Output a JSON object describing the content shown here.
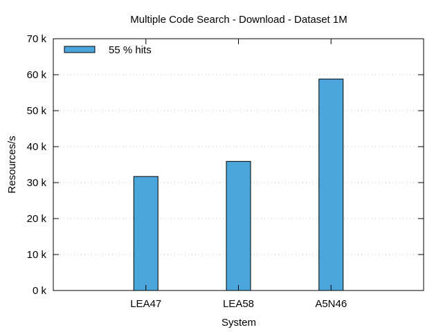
{
  "chart_data": {
    "type": "bar",
    "title": "Multiple Code Search - Download - Dataset 1M",
    "xlabel": "System",
    "ylabel": "Resources/s",
    "categories": [
      "LEA47",
      "LEA58",
      "A5N46"
    ],
    "series": [
      {
        "name": "55 % hits",
        "values": [
          31700,
          35900,
          58800
        ],
        "color": "#4ba6db"
      }
    ],
    "ylim": [
      0,
      70000
    ],
    "yticks": [
      0,
      10000,
      20000,
      30000,
      40000,
      50000,
      60000,
      70000
    ],
    "ytick_labels": [
      "0 k",
      "10 k",
      "20 k",
      "30 k",
      "40 k",
      "50 k",
      "60 k",
      "70 k"
    ],
    "grid": true,
    "legend_position": "top-left"
  }
}
